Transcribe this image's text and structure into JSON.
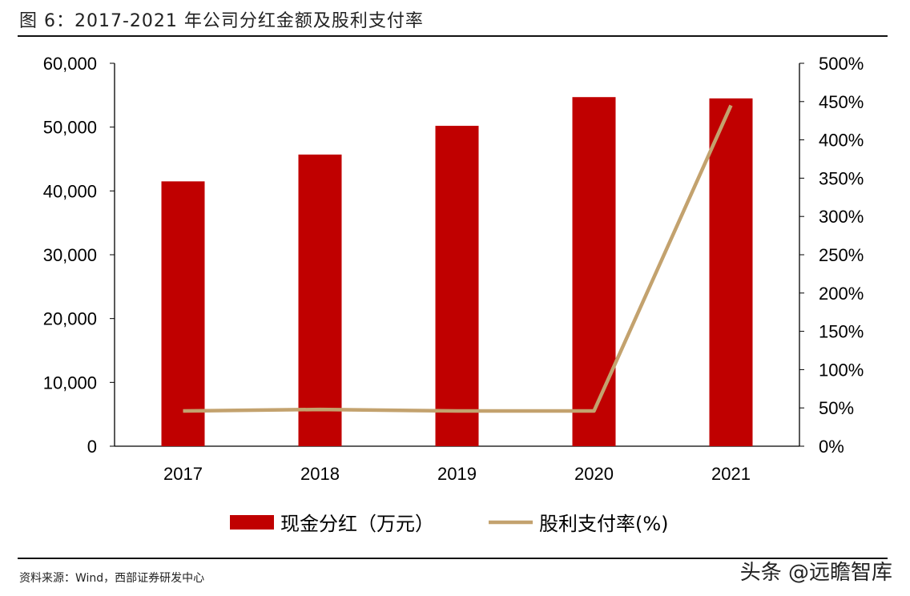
{
  "title": "图 6：2017-2021 年公司分红金额及股利支付率",
  "source": "资料来源：Wind，西部证券研发中心",
  "watermark": "头条 @远瞻智库",
  "chart_data": {
    "type": "bar+line",
    "title": "图 6：2017-2021 年公司分红金额及股利支付率",
    "categories": [
      "2017",
      "2018",
      "2019",
      "2020",
      "2021"
    ],
    "series": [
      {
        "name": "现金分红（万元）",
        "type": "bar",
        "axis": "left",
        "color": "#C00000",
        "values": [
          41500,
          45700,
          50200,
          54700,
          54500
        ]
      },
      {
        "name": "股利支付率(%)",
        "type": "line",
        "axis": "right",
        "color": "#C3A26E",
        "values": [
          46,
          48,
          46,
          46,
          445
        ]
      }
    ],
    "left_axis": {
      "ylim": [
        0,
        60000
      ],
      "ticks": [
        "0",
        "10,000",
        "20,000",
        "30,000",
        "40,000",
        "50,000",
        "60,000"
      ]
    },
    "right_axis": {
      "ylim": [
        0,
        500
      ],
      "ticks": [
        "0%",
        "50%",
        "100%",
        "150%",
        "200%",
        "250%",
        "300%",
        "350%",
        "400%",
        "450%",
        "500%"
      ]
    },
    "grid": false,
    "legend": "bottom"
  }
}
